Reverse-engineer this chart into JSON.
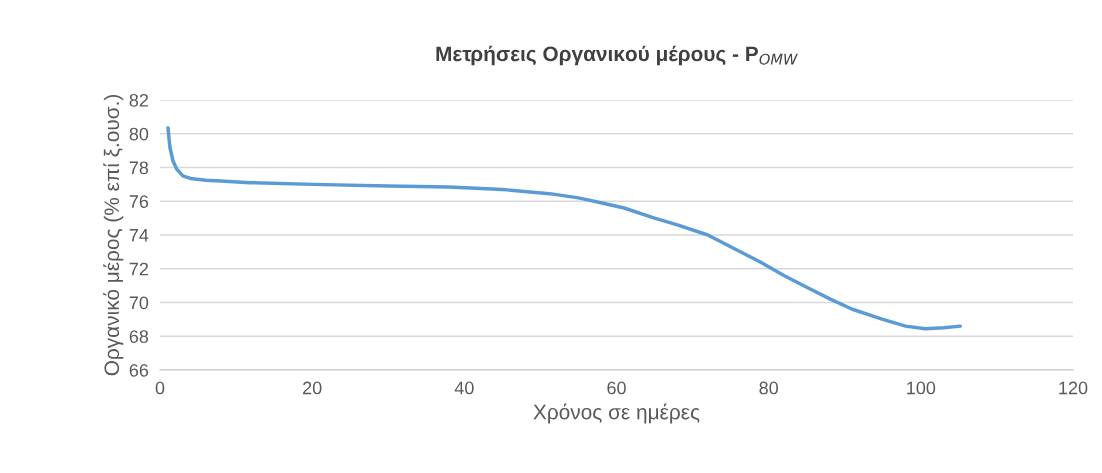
{
  "chart_data": {
    "type": "line",
    "title": "Μετρήσεις Οργανικού μέρους - P$_{OMW}$",
    "xlabel": "Χρόνος σε ημέρες",
    "ylabel": "Οργανικό μέρος (% επί ξ.ουσ.)",
    "series": [
      {
        "color": "#5b9bd5",
        "x": [
          1.05,
          1.3,
          1.7,
          2.2,
          3,
          4,
          6,
          8,
          11.8,
          20,
          30,
          38,
          45,
          51.2,
          55,
          58.1,
          61,
          65,
          68,
          72,
          75,
          78.9,
          82,
          85,
          88.1,
          91,
          95,
          98,
          100.6,
          103,
          105.2
        ],
        "values": [
          80.35,
          79.2,
          78.4,
          77.9,
          77.5,
          77.35,
          77.25,
          77.2,
          77.1,
          77.0,
          76.9,
          76.85,
          76.7,
          76.45,
          76.2,
          75.9,
          75.6,
          75.0,
          74.6,
          74.0,
          73.3,
          72.4,
          71.6,
          70.9,
          70.2,
          69.6,
          69.0,
          68.6,
          68.45,
          68.5,
          68.6
        ]
      }
    ],
    "xlim": [
      0,
      120
    ],
    "xticks": [
      0,
      20,
      40,
      60,
      80,
      100,
      120
    ],
    "ylim": [
      66,
      82
    ],
    "yticks": [
      66,
      68,
      70,
      72,
      74,
      76,
      78,
      80,
      82
    ],
    "grid": "y",
    "marker": "none",
    "line_style": "solid"
  }
}
